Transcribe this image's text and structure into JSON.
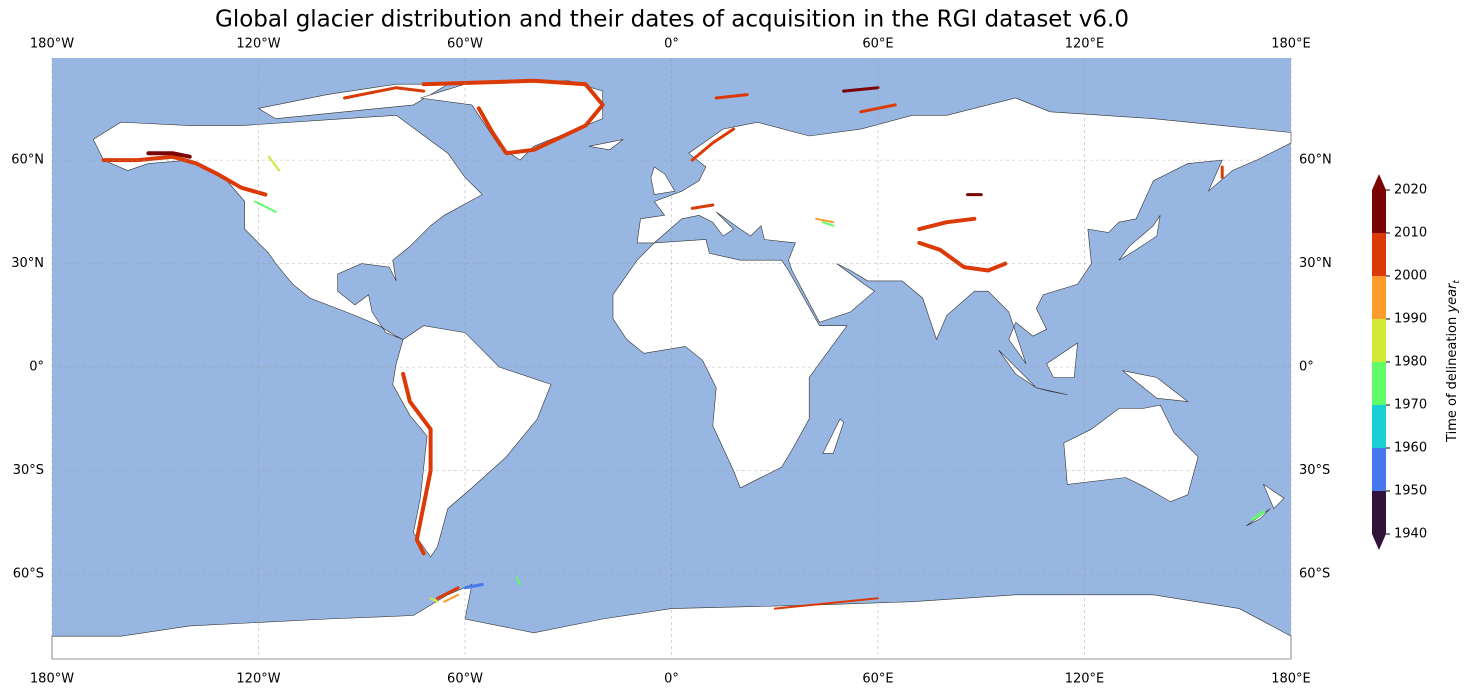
{
  "title": "Global glacier distribution and their dates of acquisition in the RGI dataset v6.0",
  "map": {
    "xlim": [
      -180,
      180
    ],
    "ylim": [
      -84.6,
      89.6
    ],
    "lon_ticks": [
      {
        "value": -180,
        "label": "180°W"
      },
      {
        "value": -120,
        "label": "120°W"
      },
      {
        "value": -60,
        "label": "60°W"
      },
      {
        "value": 0,
        "label": "0°"
      },
      {
        "value": 60,
        "label": "60°E"
      },
      {
        "value": 120,
        "label": "120°E"
      },
      {
        "value": 180,
        "label": "180°E"
      }
    ],
    "lat_ticks": [
      {
        "value": 60,
        "label": "60°N"
      },
      {
        "value": 30,
        "label": "30°N"
      },
      {
        "value": 0,
        "label": "0°"
      },
      {
        "value": -30,
        "label": "30°S"
      },
      {
        "value": -60,
        "label": "60°S"
      }
    ],
    "ocean_color": "#97b6e1"
  },
  "colorbar": {
    "label": "Time of delineation ",
    "label_var": "year",
    "label_sub": "t",
    "ticks": [
      1940,
      1950,
      1960,
      1970,
      1980,
      1990,
      2000,
      2010,
      2020
    ],
    "colors": [
      "#30123b",
      "#4777ef",
      "#1bd0d5",
      "#62fc6b",
      "#d2e935",
      "#fe9b2d",
      "#db3a07",
      "#7a0403"
    ]
  }
}
